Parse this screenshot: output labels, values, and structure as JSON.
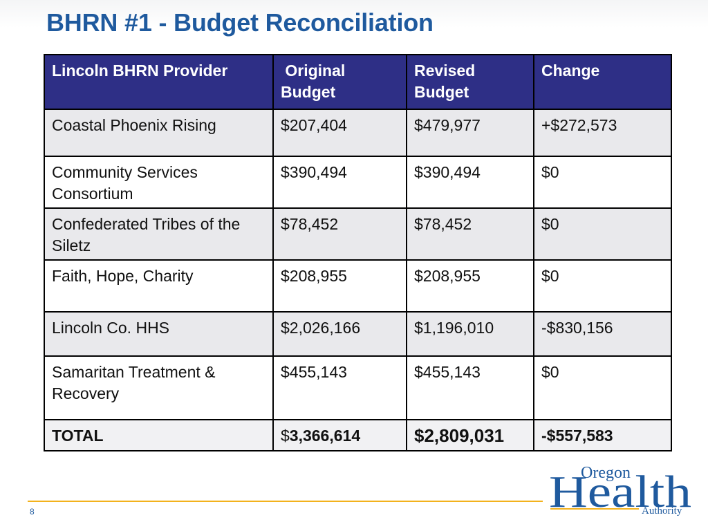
{
  "slide": {
    "title": "BHRN #1 - Budget Reconciliation",
    "page_number": "8"
  },
  "table": {
    "headers": [
      {
        "line1": "Lincoln BHRN Provider",
        "line2": ""
      },
      {
        "line1": " Original",
        "line2": "Budget"
      },
      {
        "line1": "Revised",
        "line2": "Budget"
      },
      {
        "line1": "Change",
        "line2": ""
      }
    ],
    "rows": [
      {
        "provider": "Coastal Phoenix Rising",
        "original": "$207,404",
        "revised": "$479,977",
        "change": "+$272,573",
        "change_status": "increase"
      },
      {
        "provider": "Community Services Consortium",
        "original": "$390,494",
        "revised": "$390,494",
        "change": "$0",
        "change_status": "none"
      },
      {
        "provider": "Confederated Tribes of the Siletz",
        "original": "$78,452",
        "revised": "$78,452",
        "change": "$0",
        "change_status": "none"
      },
      {
        "provider": "Faith, Hope, Charity",
        "original": "$208,955",
        "revised": "$208,955",
        "change": "$0",
        "change_status": "none"
      },
      {
        "provider": "Lincoln Co. HHS",
        "original": "$2,026,166",
        "revised": "$1,196,010",
        "change": "-$830,156",
        "change_status": "decrease"
      },
      {
        "provider": "Samaritan Treatment & Recovery",
        "original": "$455,143",
        "revised": "$455,143",
        "change": "$0",
        "change_status": "none"
      }
    ],
    "total": {
      "label": "TOTAL",
      "original_symbol": "$",
      "original_amount": "3,366,614",
      "revised": "$2,809,031",
      "change": "-$557,583"
    }
  },
  "logo": {
    "line1": "Oregon",
    "line2": "Health",
    "line3": "Authority"
  },
  "colors": {
    "title": "#1f5a9e",
    "header_bg": "#2e2f86",
    "positive": "#1aa34a",
    "negative": "#e8141c",
    "footer_rule": "#f3b21c"
  }
}
